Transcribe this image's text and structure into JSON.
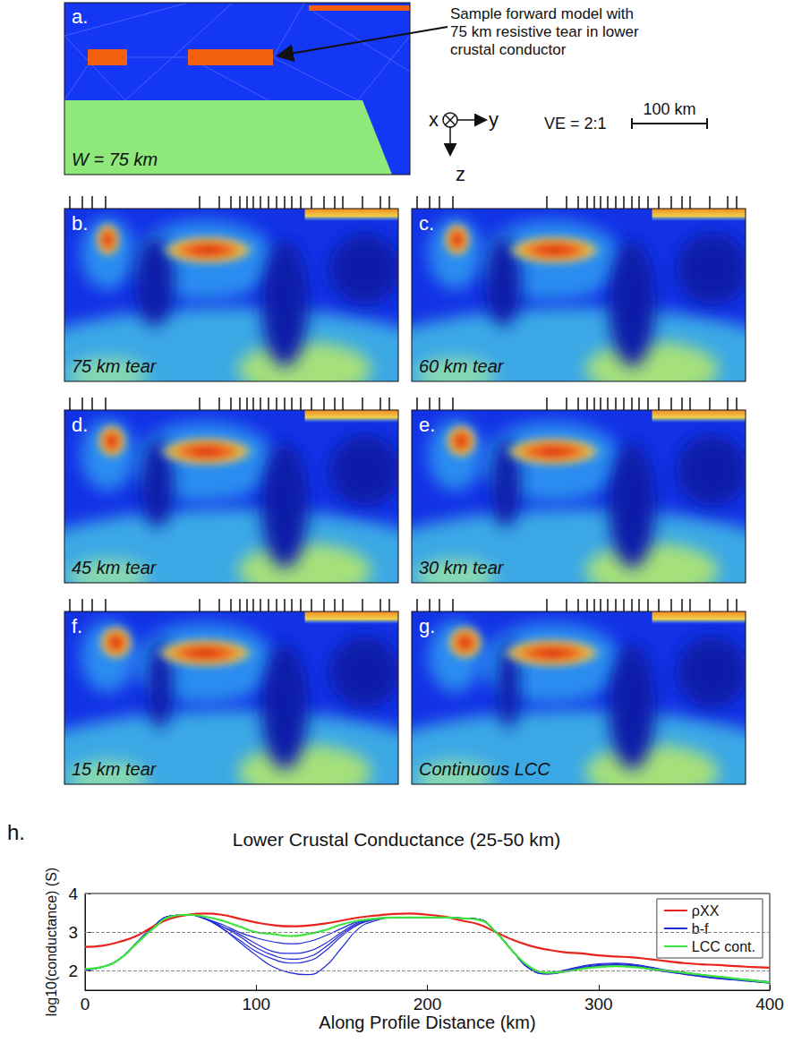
{
  "panel_a": {
    "letter": "a.",
    "label": "W = 75 km",
    "annotation": "Sample forward model with 75 km resistive tear in lower crustal conductor",
    "axes": {
      "x": "x",
      "y": "y",
      "z": "z"
    },
    "vertical_exaggeration": "VE = 2:1",
    "scale_bar": "100 km"
  },
  "panels": [
    {
      "letter": "b.",
      "label": "75 km tear"
    },
    {
      "letter": "c.",
      "label": "60 km tear"
    },
    {
      "letter": "d.",
      "label": "45 km tear"
    },
    {
      "letter": "e.",
      "label": "30 km tear"
    },
    {
      "letter": "f.",
      "label": "15 km tear"
    },
    {
      "letter": "g.",
      "label": "Continuous LCC"
    }
  ],
  "chart_data": {
    "type": "line",
    "letter": "h.",
    "title": "Lower Crustal Conductance (25-50 km)",
    "x_label": "Along Profile Distance (km)",
    "y_label": "log10(conductance) (S)",
    "x": [
      0,
      10,
      20,
      30,
      40,
      50,
      60,
      70,
      80,
      90,
      100,
      110,
      120,
      130,
      140,
      150,
      160,
      170,
      180,
      190,
      200,
      210,
      220,
      230,
      240,
      250,
      260,
      270,
      280,
      290,
      300,
      310,
      320,
      330,
      340,
      350,
      360,
      370,
      380,
      390,
      400
    ],
    "series": [
      {
        "name": "ρXX",
        "color": "#e8231d",
        "values": [
          2.62,
          2.65,
          2.75,
          2.9,
          3.15,
          3.35,
          3.45,
          3.48,
          3.45,
          3.35,
          3.25,
          3.18,
          3.15,
          3.17,
          3.22,
          3.3,
          3.38,
          3.43,
          3.47,
          3.48,
          3.45,
          3.4,
          3.3,
          3.2,
          3.0,
          2.8,
          2.65,
          2.55,
          2.48,
          2.45,
          2.4,
          2.37,
          2.35,
          2.3,
          2.25,
          2.2,
          2.17,
          2.15,
          2.12,
          2.1,
          2.08
        ]
      },
      {
        "name": "b-f",
        "color": "#1f2bd6",
        "values": [
          2.03,
          2.1,
          2.3,
          2.72,
          3.15,
          3.42,
          3.45,
          3.35,
          3.1,
          2.75,
          2.4,
          2.1,
          1.95,
          1.9,
          2.1,
          2.6,
          3.1,
          3.3,
          3.38,
          3.38,
          3.38,
          3.38,
          3.36,
          3.33,
          3.0,
          2.5,
          2.05,
          1.95,
          2.02,
          2.12,
          2.18,
          2.2,
          2.17,
          2.1,
          2.02,
          1.96,
          1.9,
          1.85,
          1.8,
          1.76,
          1.72
        ]
      },
      {
        "name": "b-f",
        "color": "#1f2bd6",
        "values": [
          2.03,
          2.1,
          2.3,
          2.72,
          3.15,
          3.42,
          3.45,
          3.35,
          3.1,
          2.8,
          2.5,
          2.3,
          2.2,
          2.25,
          2.5,
          2.9,
          3.2,
          3.33,
          3.38,
          3.38,
          3.38,
          3.38,
          3.36,
          3.33,
          3.0,
          2.5,
          2.05,
          1.94,
          2.0,
          2.1,
          2.16,
          2.18,
          2.15,
          2.08,
          2.0,
          1.94,
          1.88,
          1.83,
          1.79,
          1.75,
          1.71
        ]
      },
      {
        "name": "b-f",
        "color": "#1f2bd6",
        "values": [
          2.03,
          2.1,
          2.3,
          2.72,
          3.15,
          3.42,
          3.45,
          3.35,
          3.15,
          2.9,
          2.6,
          2.4,
          2.3,
          2.35,
          2.6,
          2.95,
          3.22,
          3.33,
          3.38,
          3.38,
          3.38,
          3.38,
          3.36,
          3.33,
          3.0,
          2.5,
          2.05,
          1.93,
          1.99,
          2.08,
          2.14,
          2.16,
          2.13,
          2.06,
          1.99,
          1.93,
          1.87,
          1.82,
          1.78,
          1.74,
          1.7
        ]
      },
      {
        "name": "b-f",
        "color": "#1f2bd6",
        "values": [
          2.03,
          2.1,
          2.3,
          2.72,
          3.15,
          3.42,
          3.45,
          3.35,
          3.15,
          2.95,
          2.7,
          2.5,
          2.45,
          2.5,
          2.7,
          3.0,
          3.25,
          3.34,
          3.38,
          3.38,
          3.38,
          3.38,
          3.36,
          3.33,
          3.0,
          2.5,
          2.05,
          1.92,
          1.98,
          2.07,
          2.12,
          2.14,
          2.12,
          2.05,
          1.98,
          1.92,
          1.86,
          1.81,
          1.77,
          1.73,
          1.69
        ]
      },
      {
        "name": "b-f",
        "color": "#1f2bd6",
        "values": [
          2.03,
          2.1,
          2.3,
          2.72,
          3.15,
          3.42,
          3.45,
          3.35,
          3.2,
          3.0,
          2.85,
          2.75,
          2.7,
          2.75,
          2.9,
          3.1,
          3.28,
          3.35,
          3.38,
          3.38,
          3.38,
          3.38,
          3.36,
          3.33,
          3.0,
          2.5,
          2.05,
          1.92,
          1.97,
          2.06,
          2.11,
          2.13,
          2.11,
          2.04,
          1.97,
          1.91,
          1.85,
          1.8,
          1.76,
          1.72,
          1.68
        ]
      },
      {
        "name": "LCC cont.",
        "color": "#3ce63c",
        "values": [
          2.05,
          2.1,
          2.3,
          2.7,
          3.1,
          3.4,
          3.45,
          3.4,
          3.3,
          3.15,
          3.0,
          2.95,
          2.9,
          2.95,
          3.05,
          3.2,
          3.3,
          3.35,
          3.38,
          3.38,
          3.38,
          3.38,
          3.36,
          3.32,
          3.0,
          2.5,
          2.1,
          1.95,
          1.98,
          2.05,
          2.1,
          2.12,
          2.1,
          2.05,
          2.0,
          1.95,
          1.9,
          1.85,
          1.8,
          1.75,
          1.7
        ]
      }
    ],
    "xlim": [
      0,
      400
    ],
    "xticks": [
      0,
      100,
      200,
      300,
      400
    ],
    "ylim": [
      1.5,
      4
    ],
    "yticks": [
      2,
      3,
      4
    ],
    "grid": true,
    "legend": "upper right"
  }
}
